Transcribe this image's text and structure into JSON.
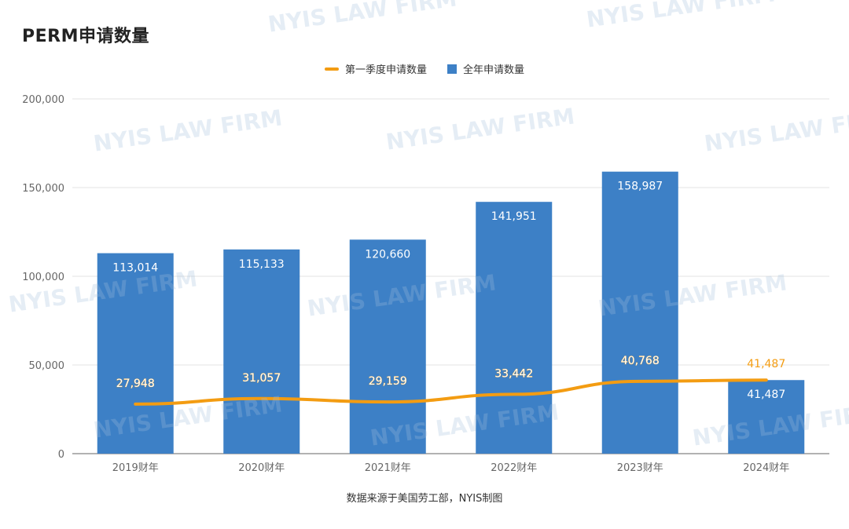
{
  "title": "PERM申请数量",
  "caption": "数据来源于美国劳工部，NYIS制图",
  "watermark_text": "NYIS LAW FIRM",
  "colors": {
    "bar": "#3d80c6",
    "line": "#f39c12",
    "grid": "#e3e3e3",
    "axis": "#999999",
    "tick_text": "#666666",
    "bar_label": "#ffffff",
    "line_label": "#f39c12"
  },
  "chart_data": {
    "type": "bar",
    "categories": [
      "2019财年",
      "2020财年",
      "2021财年",
      "2022财年",
      "2023财年",
      "2024财年"
    ],
    "series": [
      {
        "name": "第一季度申请数量",
        "kind": "line",
        "values": [
          27948,
          31057,
          29159,
          33442,
          40768,
          41487
        ]
      },
      {
        "name": "全年申请数量",
        "kind": "bar",
        "values": [
          113014,
          115133,
          120660,
          141951,
          158987,
          41487
        ]
      }
    ],
    "ylim": [
      0,
      200000
    ],
    "yticks": [
      0,
      50000,
      100000,
      150000,
      200000
    ],
    "ytick_labels": [
      "0",
      "50,000",
      "100,000",
      "150,000",
      "200,000"
    ],
    "grid": true,
    "legend_position": "top-center"
  }
}
